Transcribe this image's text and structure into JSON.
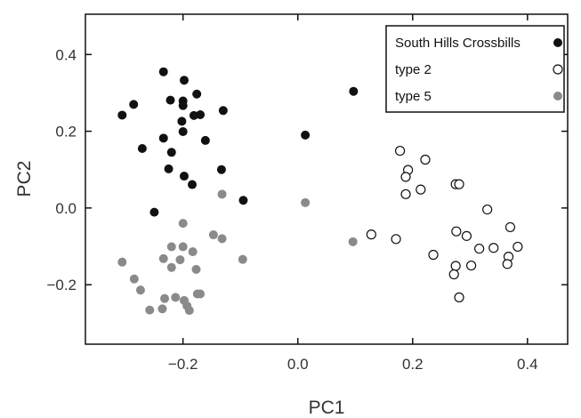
{
  "chart_data": {
    "type": "scatter",
    "xlabel": "PC1",
    "ylabel": "PC2",
    "xlim": [
      -0.37,
      0.47
    ],
    "ylim": [
      -0.355,
      0.505
    ],
    "xticks": [
      -0.2,
      0.0,
      0.2,
      0.4
    ],
    "xtick_labels": [
      "−0.2",
      "0.0",
      "0.2",
      "0.4"
    ],
    "yticks": [
      -0.2,
      0.0,
      0.2,
      0.4
    ],
    "ytick_labels": [
      "−0.2",
      "0.0",
      "0.2",
      "0.4"
    ],
    "grid": false,
    "legend_position": "top-right",
    "series": [
      {
        "name": "South Hills Crossbills",
        "marker": "filled",
        "color": "#111111",
        "points": [
          [
            -0.234,
            0.355
          ],
          [
            -0.198,
            0.333
          ],
          [
            -0.306,
            0.242
          ],
          [
            -0.286,
            0.27
          ],
          [
            -0.222,
            0.281
          ],
          [
            -0.2,
            0.279
          ],
          [
            -0.176,
            0.297
          ],
          [
            -0.17,
            0.243
          ],
          [
            -0.2,
            0.267
          ],
          [
            -0.202,
            0.226
          ],
          [
            -0.181,
            0.241
          ],
          [
            -0.13,
            0.254
          ],
          [
            -0.2,
            0.199
          ],
          [
            -0.234,
            0.182
          ],
          [
            -0.271,
            0.155
          ],
          [
            -0.161,
            0.176
          ],
          [
            -0.22,
            0.145
          ],
          [
            -0.225,
            0.102
          ],
          [
            -0.198,
            0.083
          ],
          [
            -0.133,
            0.1
          ],
          [
            -0.184,
            0.061
          ],
          [
            -0.095,
            0.02
          ],
          [
            -0.25,
            -0.011
          ],
          [
            0.013,
            0.19
          ],
          [
            0.097,
            0.304
          ]
        ]
      },
      {
        "name": "type 2",
        "marker": "open",
        "color": "#111111",
        "points": [
          [
            0.178,
            0.149
          ],
          [
            0.222,
            0.126
          ],
          [
            0.192,
            0.099
          ],
          [
            0.188,
            0.081
          ],
          [
            0.214,
            0.048
          ],
          [
            0.188,
            0.036
          ],
          [
            0.275,
            0.062
          ],
          [
            0.281,
            0.062
          ],
          [
            0.33,
            -0.004
          ],
          [
            0.128,
            -0.069
          ],
          [
            0.171,
            -0.081
          ],
          [
            0.276,
            -0.061
          ],
          [
            0.294,
            -0.073
          ],
          [
            0.37,
            -0.05
          ],
          [
            0.236,
            -0.122
          ],
          [
            0.316,
            -0.106
          ],
          [
            0.341,
            -0.104
          ],
          [
            0.383,
            -0.101
          ],
          [
            0.367,
            -0.127
          ],
          [
            0.365,
            -0.146
          ],
          [
            0.275,
            -0.151
          ],
          [
            0.302,
            -0.15
          ],
          [
            0.272,
            -0.173
          ],
          [
            0.281,
            -0.233
          ]
        ]
      },
      {
        "name": "type 5",
        "marker": "filled",
        "color": "#8a8a8a",
        "points": [
          [
            -0.132,
            0.036
          ],
          [
            0.013,
            0.014
          ],
          [
            -0.2,
            -0.04
          ],
          [
            -0.147,
            -0.07
          ],
          [
            -0.132,
            -0.08
          ],
          [
            -0.22,
            -0.101
          ],
          [
            -0.2,
            -0.101
          ],
          [
            -0.183,
            -0.114
          ],
          [
            -0.234,
            -0.132
          ],
          [
            -0.205,
            -0.135
          ],
          [
            -0.306,
            -0.141
          ],
          [
            -0.096,
            -0.134
          ],
          [
            -0.22,
            -0.155
          ],
          [
            -0.177,
            -0.16
          ],
          [
            -0.285,
            -0.185
          ],
          [
            -0.274,
            -0.214
          ],
          [
            -0.175,
            -0.224
          ],
          [
            -0.17,
            -0.224
          ],
          [
            -0.213,
            -0.233
          ],
          [
            -0.232,
            -0.236
          ],
          [
            -0.198,
            -0.241
          ],
          [
            -0.193,
            -0.255
          ],
          [
            -0.258,
            -0.266
          ],
          [
            -0.236,
            -0.263
          ],
          [
            -0.189,
            -0.267
          ],
          [
            0.096,
            -0.088
          ]
        ]
      }
    ]
  }
}
